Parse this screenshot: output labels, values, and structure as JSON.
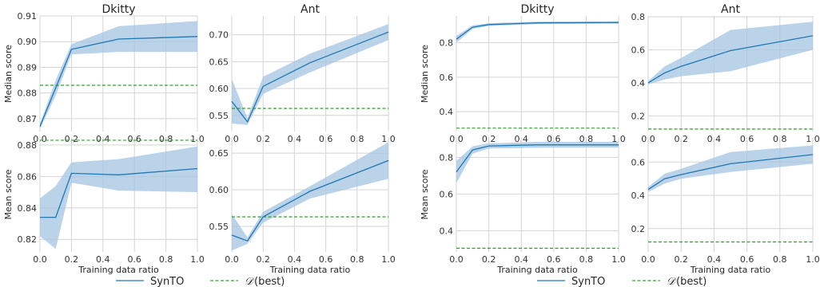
{
  "legend": {
    "series_label": "SynTO",
    "baseline_prefix": "𝒟",
    "baseline_suffix": "(best)"
  },
  "colors": {
    "series": "#1f77b4",
    "band": "#a6c6e2",
    "baseline": "#2ca02c",
    "grid": "#d4d4d4"
  },
  "chart_data": [
    {
      "type": "line",
      "title": "Dkitty",
      "xlabel": "",
      "ylabel": "Median score",
      "xlim": [
        0,
        1
      ],
      "ylim": [
        0.865,
        0.91
      ],
      "xticks": [
        "0.0",
        "0.2",
        "0.4",
        "0.6",
        "0.8",
        "1.0"
      ],
      "yticks": [
        {
          "v": 0.87,
          "t": "0.87"
        },
        {
          "v": 0.88,
          "t": "0.88"
        },
        {
          "v": 0.89,
          "t": "0.89"
        },
        {
          "v": 0.9,
          "t": "0.90"
        },
        {
          "v": 0.91,
          "t": "0.91"
        }
      ],
      "x": [
        0.0,
        0.1,
        0.2,
        0.5,
        1.0
      ],
      "y": [
        0.867,
        0.882,
        0.897,
        0.901,
        0.902
      ],
      "y_low": [
        0.866,
        0.879,
        0.895,
        0.896,
        0.896
      ],
      "y_high": [
        0.868,
        0.885,
        0.899,
        0.906,
        0.908
      ],
      "baseline": 0.883
    },
    {
      "type": "line",
      "title": "Ant",
      "xlabel": "",
      "ylabel": "",
      "xlim": [
        0,
        1
      ],
      "ylim": [
        0.52,
        0.735
      ],
      "xticks": [
        "0.0",
        "0.2",
        "0.4",
        "0.6",
        "0.8",
        "1.0"
      ],
      "yticks": [
        {
          "v": 0.55,
          "t": "0.55"
        },
        {
          "v": 0.6,
          "t": "0.60"
        },
        {
          "v": 0.65,
          "t": "0.65"
        },
        {
          "v": 0.7,
          "t": "0.70"
        }
      ],
      "x": [
        0.0,
        0.1,
        0.2,
        0.5,
        1.0
      ],
      "y": [
        0.576,
        0.538,
        0.604,
        0.648,
        0.705
      ],
      "y_low": [
        0.535,
        0.532,
        0.59,
        0.63,
        0.69
      ],
      "y_high": [
        0.618,
        0.545,
        0.622,
        0.665,
        0.72
      ],
      "baseline": 0.563
    },
    {
      "type": "line",
      "title": "",
      "xlabel": "Training data ratio",
      "ylabel": "Mean score",
      "xlim": [
        0,
        1
      ],
      "ylim": [
        0.812,
        0.885
      ],
      "xticks": [
        "0.0",
        "0.2",
        "0.4",
        "0.6",
        "0.8",
        "1.0"
      ],
      "yticks": [
        {
          "v": 0.82,
          "t": "0.82"
        },
        {
          "v": 0.84,
          "t": "0.84"
        },
        {
          "v": 0.86,
          "t": "0.86"
        },
        {
          "v": 0.88,
          "t": "0.88"
        }
      ],
      "x": [
        0.0,
        0.1,
        0.2,
        0.5,
        1.0
      ],
      "y": [
        0.834,
        0.834,
        0.862,
        0.861,
        0.865
      ],
      "y_low": [
        0.822,
        0.814,
        0.856,
        0.851,
        0.85
      ],
      "y_high": [
        0.846,
        0.854,
        0.869,
        0.871,
        0.879
      ],
      "baseline": 0.883
    },
    {
      "type": "line",
      "title": "",
      "xlabel": "Training data ratio",
      "ylabel": "",
      "xlim": [
        0,
        1
      ],
      "ylim": [
        0.515,
        0.672
      ],
      "xticks": [
        "0.0",
        "0.2",
        "0.4",
        "0.6",
        "0.8",
        "1.0"
      ],
      "yticks": [
        {
          "v": 0.55,
          "t": "0.55"
        },
        {
          "v": 0.6,
          "t": "0.60"
        },
        {
          "v": 0.65,
          "t": "0.65"
        }
      ],
      "x": [
        0.0,
        0.1,
        0.2,
        0.5,
        1.0
      ],
      "y": [
        0.538,
        0.53,
        0.563,
        0.598,
        0.64
      ],
      "y_low": [
        0.517,
        0.526,
        0.555,
        0.588,
        0.615
      ],
      "y_high": [
        0.567,
        0.535,
        0.57,
        0.605,
        0.665
      ],
      "baseline": 0.563
    },
    {
      "type": "line",
      "title": "Dkitty",
      "xlabel": "",
      "ylabel": "Median score",
      "xlim": [
        0,
        1
      ],
      "ylim": [
        0.285,
        0.955
      ],
      "xticks": [
        "0.0",
        "0.2",
        "0.4",
        "0.6",
        "0.8",
        "1.0"
      ],
      "yticks": [
        {
          "v": 0.4,
          "t": "0.4"
        },
        {
          "v": 0.6,
          "t": "0.6"
        },
        {
          "v": 0.8,
          "t": "0.8"
        }
      ],
      "x": [
        0.0,
        0.1,
        0.2,
        0.5,
        1.0
      ],
      "y": [
        0.82,
        0.89,
        0.905,
        0.915,
        0.917
      ],
      "y_low": [
        0.8,
        0.88,
        0.897,
        0.908,
        0.91
      ],
      "y_high": [
        0.84,
        0.9,
        0.913,
        0.922,
        0.924
      ],
      "baseline": 0.305
    },
    {
      "type": "line",
      "title": "Ant",
      "xlabel": "",
      "ylabel": "",
      "xlim": [
        0,
        1
      ],
      "ylim": [
        0.105,
        0.805
      ],
      "xticks": [
        "0.0",
        "0.2",
        "0.4",
        "0.6",
        "0.8",
        "1.0"
      ],
      "yticks": [
        {
          "v": 0.2,
          "t": "0.2"
        },
        {
          "v": 0.4,
          "t": "0.4"
        },
        {
          "v": 0.6,
          "t": "0.6"
        },
        {
          "v": 0.8,
          "t": "0.8"
        }
      ],
      "x": [
        0.0,
        0.1,
        0.2,
        0.5,
        1.0
      ],
      "y": [
        0.4,
        0.46,
        0.5,
        0.595,
        0.685
      ],
      "y_low": [
        0.39,
        0.42,
        0.44,
        0.47,
        0.6
      ],
      "y_high": [
        0.41,
        0.5,
        0.55,
        0.72,
        0.77
      ],
      "baseline": 0.12
    },
    {
      "type": "line",
      "title": "",
      "xlabel": "Training data ratio",
      "ylabel": "Mean score",
      "xlim": [
        0,
        1
      ],
      "ylim": [
        0.285,
        0.91
      ],
      "xticks": [
        "0.0",
        "0.2",
        "0.4",
        "0.6",
        "0.8",
        "1.0"
      ],
      "yticks": [
        {
          "v": 0.4,
          "t": "0.4"
        },
        {
          "v": 0.6,
          "t": "0.6"
        },
        {
          "v": 0.8,
          "t": "0.8"
        }
      ],
      "x": [
        0.0,
        0.1,
        0.2,
        0.5,
        1.0
      ],
      "y": [
        0.72,
        0.84,
        0.862,
        0.868,
        0.868
      ],
      "y_low": [
        0.66,
        0.82,
        0.848,
        0.852,
        0.853
      ],
      "y_high": [
        0.78,
        0.86,
        0.876,
        0.884,
        0.884
      ],
      "baseline": 0.305
    },
    {
      "type": "line",
      "title": "",
      "xlabel": "Training data ratio",
      "ylabel": "",
      "xlim": [
        0,
        1
      ],
      "ylim": [
        0.06,
        0.75
      ],
      "xticks": [
        "0.0",
        "0.2",
        "0.4",
        "0.6",
        "0.8",
        "1.0"
      ],
      "yticks": [
        {
          "v": 0.2,
          "t": "0.2"
        },
        {
          "v": 0.4,
          "t": "0.4"
        },
        {
          "v": 0.6,
          "t": "0.6"
        }
      ],
      "x": [
        0.0,
        0.1,
        0.2,
        0.5,
        1.0
      ],
      "y": [
        0.435,
        0.5,
        0.525,
        0.59,
        0.645
      ],
      "y_low": [
        0.42,
        0.47,
        0.5,
        0.54,
        0.59
      ],
      "y_high": [
        0.45,
        0.53,
        0.56,
        0.66,
        0.7
      ],
      "baseline": 0.12
    }
  ]
}
